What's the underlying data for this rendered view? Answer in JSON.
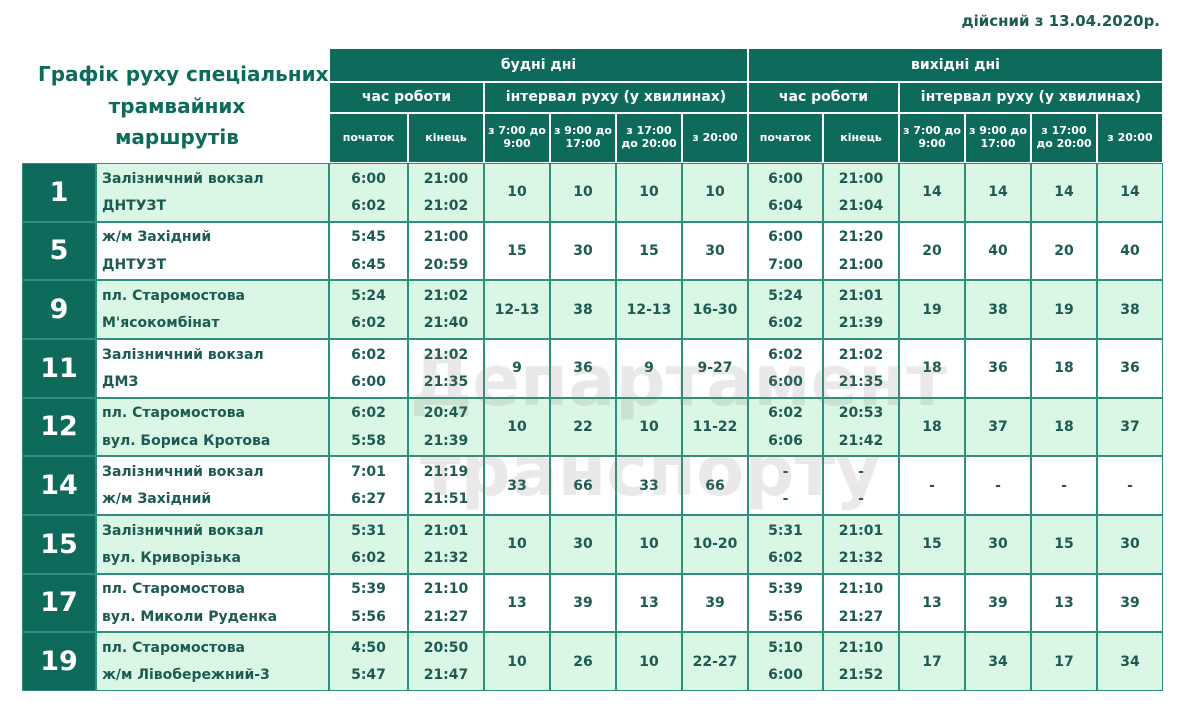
{
  "effective_note": "дійсний з 13.04.2020р.",
  "title": [
    "Графік руху спеціальних",
    "трамвайних",
    "маршрутів"
  ],
  "header": {
    "weekdays": "будні дні",
    "weekends": "вихідні дні",
    "work_hours": "час роботи",
    "interval": "інтервал руху (у хвилинах)",
    "start": "початок",
    "end": "кінець",
    "periods": [
      "з 7:00 до 9:00",
      "з 9:00 до 17:00",
      "з 17:00 до 20:00",
      "з 20:00"
    ]
  },
  "watermark": [
    "Департамент",
    "транспорту"
  ],
  "rows": [
    {
      "route": "1",
      "stops": [
        "Залізничний вокзал",
        "ДНТУЗТ"
      ],
      "weekday_times": [
        [
          "6:00",
          "21:00"
        ],
        [
          "6:02",
          "21:02"
        ]
      ],
      "weekday_intervals": [
        "10",
        "10",
        "10",
        "10"
      ],
      "weekend_times": [
        [
          "6:00",
          "21:00"
        ],
        [
          "6:04",
          "21:04"
        ]
      ],
      "weekend_intervals": [
        "14",
        "14",
        "14",
        "14"
      ]
    },
    {
      "route": "5",
      "stops": [
        "ж/м Західний",
        "ДНТУЗТ"
      ],
      "weekday_times": [
        [
          "5:45",
          "21:00"
        ],
        [
          "6:45",
          "20:59"
        ]
      ],
      "weekday_intervals": [
        "15",
        "30",
        "15",
        "30"
      ],
      "weekend_times": [
        [
          "6:00",
          "21:20"
        ],
        [
          "7:00",
          "21:00"
        ]
      ],
      "weekend_intervals": [
        "20",
        "40",
        "20",
        "40"
      ]
    },
    {
      "route": "9",
      "stops": [
        "пл. Старомостова",
        "М'ясокомбінат"
      ],
      "weekday_times": [
        [
          "5:24",
          "21:02"
        ],
        [
          "6:02",
          "21:40"
        ]
      ],
      "weekday_intervals": [
        "12-13",
        "38",
        "12-13",
        "16-30"
      ],
      "weekend_times": [
        [
          "5:24",
          "21:01"
        ],
        [
          "6:02",
          "21:39"
        ]
      ],
      "weekend_intervals": [
        "19",
        "38",
        "19",
        "38"
      ]
    },
    {
      "route": "11",
      "stops": [
        "Залізничний вокзал",
        "ДМЗ"
      ],
      "weekday_times": [
        [
          "6:02",
          "21:02"
        ],
        [
          "6:00",
          "21:35"
        ]
      ],
      "weekday_intervals": [
        "9",
        "36",
        "9",
        "9-27"
      ],
      "weekend_times": [
        [
          "6:02",
          "21:02"
        ],
        [
          "6:00",
          "21:35"
        ]
      ],
      "weekend_intervals": [
        "18",
        "36",
        "18",
        "36"
      ]
    },
    {
      "route": "12",
      "stops": [
        "пл. Старомостова",
        "вул. Бориса Кротова"
      ],
      "weekday_times": [
        [
          "6:02",
          "20:47"
        ],
        [
          "5:58",
          "21:39"
        ]
      ],
      "weekday_intervals": [
        "10",
        "22",
        "10",
        "11-22"
      ],
      "weekend_times": [
        [
          "6:02",
          "20:53"
        ],
        [
          "6:06",
          "21:42"
        ]
      ],
      "weekend_intervals": [
        "18",
        "37",
        "18",
        "37"
      ]
    },
    {
      "route": "14",
      "stops": [
        "Залізничний вокзал",
        "ж/м Західний"
      ],
      "weekday_times": [
        [
          "7:01",
          "21:19"
        ],
        [
          "6:27",
          "21:51"
        ]
      ],
      "weekday_intervals": [
        "33",
        "66",
        "33",
        "66"
      ],
      "weekend_times": [
        [
          "-",
          "-"
        ],
        [
          "-",
          "-"
        ]
      ],
      "weekend_intervals": [
        "-",
        "-",
        "-",
        "-"
      ]
    },
    {
      "route": "15",
      "stops": [
        "Залізничний вокзал",
        "вул. Криворізька"
      ],
      "weekday_times": [
        [
          "5:31",
          "21:01"
        ],
        [
          "6:02",
          "21:32"
        ]
      ],
      "weekday_intervals": [
        "10",
        "30",
        "10",
        "10-20"
      ],
      "weekend_times": [
        [
          "5:31",
          "21:01"
        ],
        [
          "6:02",
          "21:32"
        ]
      ],
      "weekend_intervals": [
        "15",
        "30",
        "15",
        "30"
      ]
    },
    {
      "route": "17",
      "stops": [
        "пл. Старомостова",
        "вул. Миколи Руденка"
      ],
      "weekday_times": [
        [
          "5:39",
          "21:10"
        ],
        [
          "5:56",
          "21:27"
        ]
      ],
      "weekday_intervals": [
        "13",
        "39",
        "13",
        "39"
      ],
      "weekend_times": [
        [
          "5:39",
          "21:10"
        ],
        [
          "5:56",
          "21:27"
        ]
      ],
      "weekend_intervals": [
        "13",
        "39",
        "13",
        "39"
      ]
    },
    {
      "route": "19",
      "stops": [
        "пл. Старомостова",
        "ж/м Лівобережний-3"
      ],
      "weekday_times": [
        [
          "4:50",
          "20:50"
        ],
        [
          "5:47",
          "21:47"
        ]
      ],
      "weekday_intervals": [
        "10",
        "26",
        "10",
        "22-27"
      ],
      "weekend_times": [
        [
          "5:10",
          "21:10"
        ],
        [
          "6:00",
          "21:52"
        ]
      ],
      "weekend_intervals": [
        "17",
        "34",
        "17",
        "34"
      ]
    }
  ]
}
